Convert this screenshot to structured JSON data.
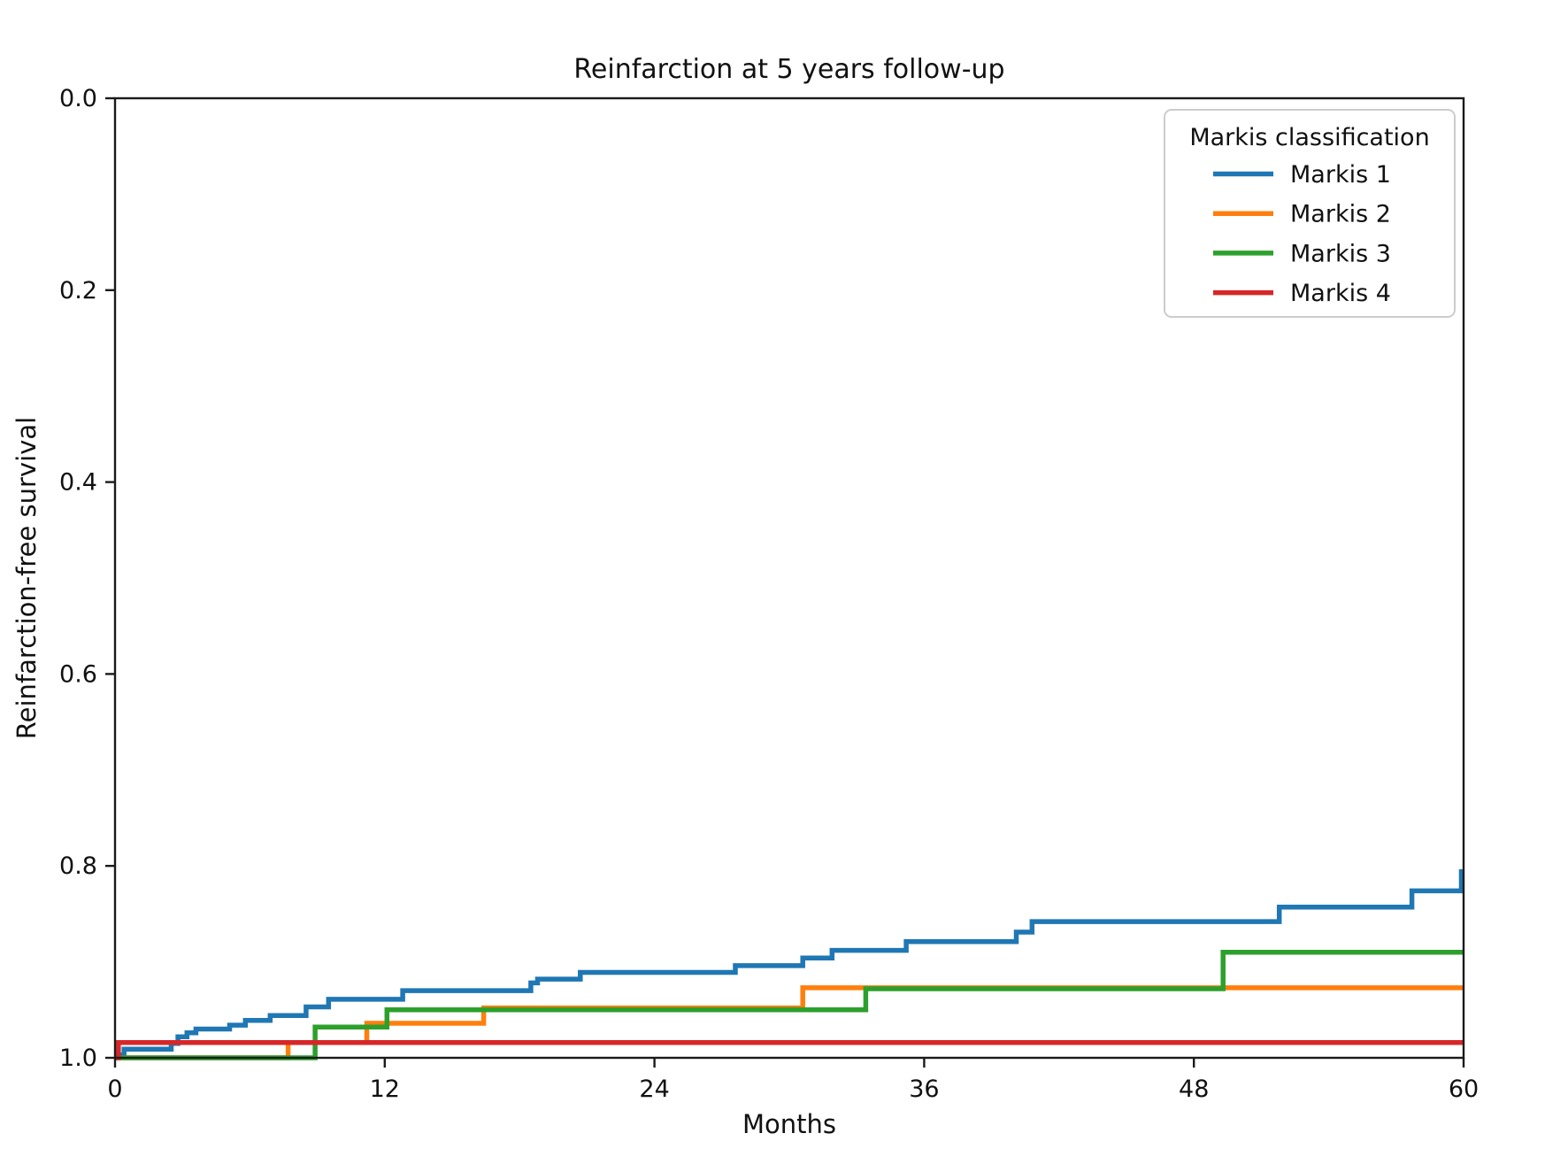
{
  "chart_data": {
    "type": "line",
    "variant": "kaplan_meier_step",
    "title": "Reinfarction at 5 years follow-up",
    "xlabel": "Months",
    "ylabel": "Reinfarction-free survival",
    "xlim": [
      0,
      60
    ],
    "ylim": [
      0.0,
      1.0
    ],
    "y_axis_note": "inverted: 0.0 at top, 1.0 at bottom; curves start at survival 1.0 (bottom) and step upward as survival decreases",
    "x_ticks": [
      0,
      12,
      24,
      36,
      48,
      60
    ],
    "y_ticks": [
      0.0,
      0.2,
      0.4,
      0.6,
      0.8,
      1.0
    ],
    "grid": false,
    "legend": {
      "title": "Markis classification",
      "position": "upper right",
      "entries": [
        "Markis 1",
        "Markis 2",
        "Markis 3",
        "Markis 4"
      ]
    },
    "series": [
      {
        "name": "Markis 1",
        "color": "#1f77b4",
        "start_survival": 0.997,
        "steps": [
          [
            0.4,
            0.991
          ],
          [
            2.5,
            0.985
          ],
          [
            2.8,
            0.978
          ],
          [
            3.2,
            0.974
          ],
          [
            3.6,
            0.97
          ],
          [
            5.1,
            0.966
          ],
          [
            5.8,
            0.961
          ],
          [
            6.9,
            0.956
          ],
          [
            8.5,
            0.947
          ],
          [
            9.5,
            0.939
          ],
          [
            12.8,
            0.93
          ],
          [
            18.5,
            0.922
          ],
          [
            18.8,
            0.918
          ],
          [
            20.7,
            0.911
          ],
          [
            27.6,
            0.904
          ],
          [
            30.6,
            0.896
          ],
          [
            31.9,
            0.888
          ],
          [
            35.2,
            0.879
          ],
          [
            40.1,
            0.869
          ],
          [
            40.8,
            0.858
          ],
          [
            51.8,
            0.843
          ],
          [
            57.7,
            0.826
          ],
          [
            59.9,
            0.806
          ]
        ]
      },
      {
        "name": "Markis 2",
        "color": "#ff7f0e",
        "start_survival": 1.0,
        "steps": [
          [
            7.7,
            0.984
          ],
          [
            11.2,
            0.964
          ],
          [
            16.4,
            0.948
          ],
          [
            30.6,
            0.927
          ]
        ]
      },
      {
        "name": "Markis 3",
        "color": "#2ca02c",
        "start_survival": 1.0,
        "steps": [
          [
            8.9,
            0.968
          ],
          [
            12.1,
            0.95
          ],
          [
            33.4,
            0.928
          ],
          [
            49.3,
            0.89
          ]
        ]
      },
      {
        "name": "Markis 4",
        "color": "#d62728",
        "start_survival": 1.0,
        "steps": [
          [
            0.15,
            0.984
          ]
        ]
      }
    ]
  }
}
